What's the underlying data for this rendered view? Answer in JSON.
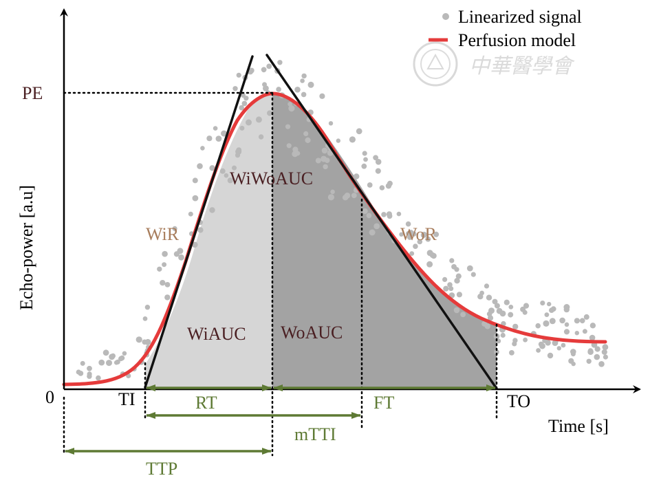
{
  "figure": {
    "y_axis_label": "Echo-power [a.u]",
    "x_axis_label": "Time [s]",
    "origin_label": "0",
    "pe_label": "PE",
    "ti_label": "TI",
    "to_label": "TO",
    "regions": {
      "wiwoauc": "WiWoAUC",
      "wiauc": "WiAUC",
      "woauc": "WoAUC"
    },
    "slopes": {
      "wir": "WiR",
      "wor": "WoR"
    },
    "intervals": {
      "rt": "RT",
      "ft": "FT",
      "mtti": "mTTI",
      "ttp": "TTP"
    },
    "legend": {
      "items": [
        {
          "label": "Linearized signal",
          "marker": "dot",
          "color": "#b9b9b9"
        },
        {
          "label": "Perfusion model",
          "marker": "line",
          "color": "#e53b3b"
        }
      ]
    },
    "watermark": {
      "text": "中華醫學會"
    },
    "colors": {
      "model_curve": "#e53b3b",
      "signal_dots": "#b9b9b9",
      "wash_in_fill": "#d6d6d6",
      "wash_out_fill": "#a3a3a3",
      "interval_arrows": "#5e7a34"
    }
  }
}
